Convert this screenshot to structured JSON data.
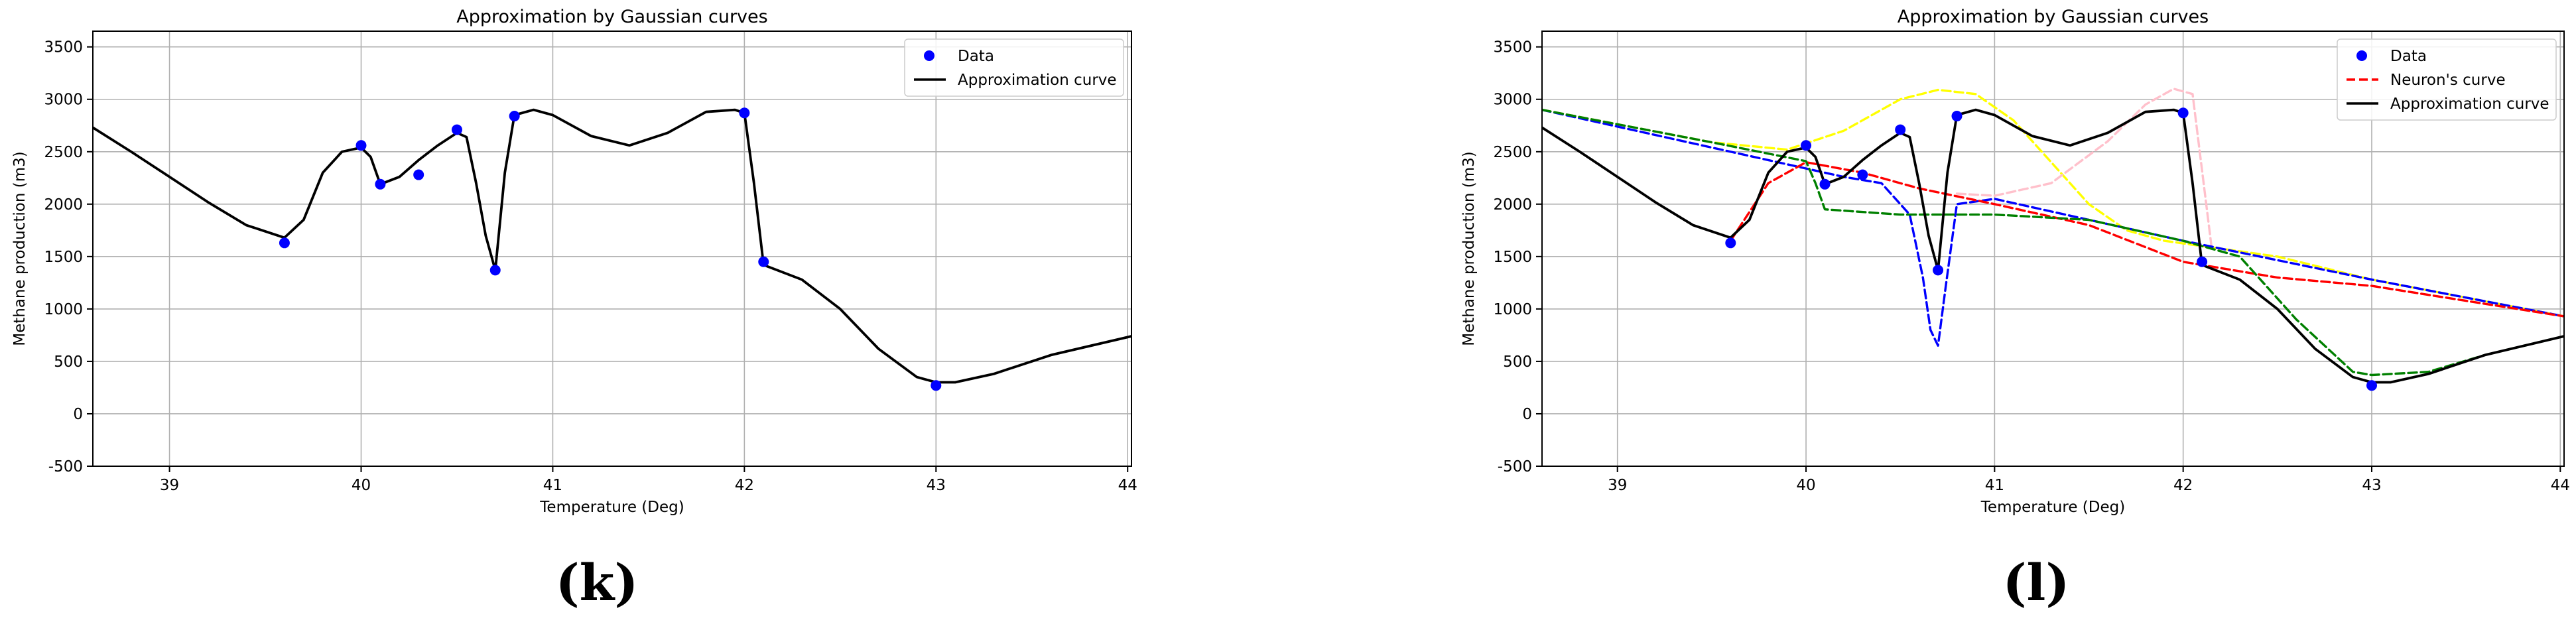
{
  "chart_data": [
    {
      "panel_label": "(k)",
      "type": "line",
      "title": "Approximation by Gaussian curves",
      "xlabel": "Temperature (Deg)",
      "ylabel": "Methane production (m3)",
      "xlim": [
        38.6,
        44.02
      ],
      "ylim": [
        -500,
        3650
      ],
      "xticks": [
        39,
        40,
        41,
        42,
        43,
        44
      ],
      "yticks": [
        -500,
        0,
        500,
        1000,
        1500,
        2000,
        2500,
        3000,
        3500
      ],
      "grid": true,
      "legend": "top-right",
      "scatter": {
        "name": "Data",
        "color": "#0000ff",
        "x": [
          39.6,
          40.0,
          40.1,
          40.3,
          40.5,
          40.7,
          40.8,
          42.0,
          42.1,
          43.0
        ],
        "y": [
          1630,
          2560,
          2190,
          2280,
          2710,
          1370,
          2840,
          2870,
          1450,
          270
        ]
      },
      "series": [
        {
          "name": "Approximation curve",
          "color": "#000000",
          "dash": "solid",
          "x": [
            38.6,
            38.8,
            39.0,
            39.2,
            39.4,
            39.6,
            39.7,
            39.8,
            39.9,
            40.0,
            40.05,
            40.1,
            40.2,
            40.3,
            40.4,
            40.5,
            40.55,
            40.6,
            40.65,
            40.7,
            40.75,
            40.8,
            40.9,
            41.0,
            41.2,
            41.4,
            41.6,
            41.8,
            41.95,
            42.0,
            42.05,
            42.1,
            42.3,
            42.5,
            42.7,
            42.9,
            43.0,
            43.1,
            43.3,
            43.6,
            44.02
          ],
          "y": [
            2730,
            2500,
            2260,
            2020,
            1800,
            1680,
            1850,
            2300,
            2500,
            2540,
            2450,
            2190,
            2260,
            2420,
            2560,
            2680,
            2640,
            2200,
            1700,
            1370,
            2300,
            2850,
            2900,
            2850,
            2650,
            2560,
            2680,
            2880,
            2900,
            2870,
            2200,
            1420,
            1280,
            1000,
            620,
            350,
            300,
            300,
            380,
            560,
            740
          ]
        }
      ]
    },
    {
      "panel_label": "(l)",
      "type": "line",
      "title": "Approximation by Gaussian curves",
      "xlabel": "Temperature (Deg)",
      "ylabel": "Methane production (m3)",
      "xlim": [
        38.6,
        44.02
      ],
      "ylim": [
        -500,
        3650
      ],
      "xticks": [
        39,
        40,
        41,
        42,
        43,
        44
      ],
      "yticks": [
        -500,
        0,
        500,
        1000,
        1500,
        2000,
        2500,
        3000,
        3500
      ],
      "grid": true,
      "legend": "top-right",
      "scatter": {
        "name": "Data",
        "color": "#0000ff",
        "x": [
          39.6,
          40.0,
          40.1,
          40.3,
          40.5,
          40.7,
          40.8,
          42.0,
          42.1,
          43.0
        ],
        "y": [
          1630,
          2560,
          2190,
          2280,
          2710,
          1370,
          2840,
          2870,
          1450,
          270
        ]
      },
      "series": [
        {
          "color": "#ffff00",
          "dash": "dashed",
          "x": [
            38.6,
            39.5,
            39.9,
            40.2,
            40.5,
            40.7,
            40.9,
            41.1,
            41.3,
            41.5,
            41.7,
            41.9,
            42.1,
            42.5,
            43.0,
            44.02
          ],
          "y": [
            2900,
            2590,
            2520,
            2700,
            3000,
            3090,
            3050,
            2800,
            2400,
            2000,
            1750,
            1650,
            1600,
            1500,
            1280,
            930
          ]
        },
        {
          "color": "#ffc0cb",
          "dash": "dashed",
          "x": [
            40.8,
            41.0,
            41.3,
            41.6,
            41.8,
            41.95,
            42.05,
            42.15
          ],
          "y": [
            2100,
            2080,
            2200,
            2600,
            2950,
            3100,
            3050,
            1600
          ]
        },
        {
          "color": "#0000ff",
          "dash": "dashed",
          "x": [
            38.6,
            40.2,
            40.4,
            40.55,
            40.62,
            40.66,
            40.7,
            40.74,
            40.8,
            41.0,
            42.0,
            43.0,
            44.02
          ],
          "y": [
            2900,
            2260,
            2200,
            1900,
            1300,
            800,
            650,
            1200,
            2000,
            2050,
            1650,
            1280,
            930
          ]
        },
        {
          "name": "Neuron's curve",
          "color": "#ff0000",
          "dash": "dashed",
          "x": [
            39.6,
            39.8,
            40.0,
            40.3,
            40.6,
            41.0,
            41.5,
            42.0,
            42.5,
            43.0,
            44.02
          ],
          "y": [
            1650,
            2200,
            2400,
            2300,
            2150,
            2000,
            1800,
            1450,
            1300,
            1220,
            930
          ]
        },
        {
          "color": "#008000",
          "dash": "dashed",
          "x": [
            38.6,
            39.5,
            40.0,
            40.05,
            40.1,
            40.5,
            41.0,
            41.5,
            42.0,
            42.3,
            42.6,
            42.9,
            43.0,
            43.3,
            43.6,
            44.02
          ],
          "y": [
            2900,
            2590,
            2410,
            2200,
            1950,
            1900,
            1900,
            1850,
            1650,
            1500,
            900,
            400,
            370,
            400,
            560,
            740
          ]
        },
        {
          "name": "Approximation curve",
          "color": "#000000",
          "dash": "solid",
          "x": [
            38.6,
            38.8,
            39.0,
            39.2,
            39.4,
            39.6,
            39.7,
            39.8,
            39.9,
            40.0,
            40.05,
            40.1,
            40.2,
            40.3,
            40.4,
            40.5,
            40.55,
            40.6,
            40.65,
            40.7,
            40.75,
            40.8,
            40.9,
            41.0,
            41.2,
            41.4,
            41.6,
            41.8,
            41.95,
            42.0,
            42.05,
            42.1,
            42.3,
            42.5,
            42.7,
            42.9,
            43.0,
            43.1,
            43.3,
            43.6,
            44.02
          ],
          "y": [
            2730,
            2500,
            2260,
            2020,
            1800,
            1680,
            1850,
            2300,
            2500,
            2540,
            2450,
            2190,
            2260,
            2420,
            2560,
            2680,
            2640,
            2200,
            1700,
            1370,
            2300,
            2850,
            2900,
            2850,
            2650,
            2560,
            2680,
            2880,
            2900,
            2870,
            2200,
            1420,
            1280,
            1000,
            620,
            350,
            300,
            300,
            380,
            560,
            740
          ]
        }
      ]
    }
  ]
}
